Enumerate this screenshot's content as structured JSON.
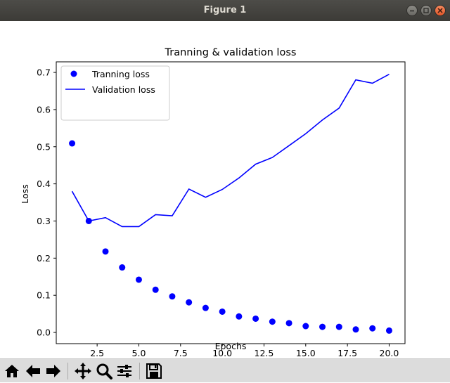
{
  "window": {
    "title": "Figure 1"
  },
  "toolbar": {
    "buttons": [
      "home-icon",
      "back-arrow-icon",
      "forward-arrow-icon",
      "pan-icon",
      "zoom-icon",
      "subplots-icon",
      "save-icon"
    ]
  },
  "colors": {
    "series": "#0000ff",
    "titlebar": "#3c3b37",
    "toolbar": "#dcdcdc"
  },
  "chart_data": {
    "type": "line",
    "title": "Tranning & validation loss",
    "xlabel": "Epochs",
    "ylabel": "Loss",
    "xlim": [
      0.05,
      20.95
    ],
    "ylim": [
      -0.0302,
      0.7285
    ],
    "xticks": [
      2.5,
      5.0,
      7.5,
      10.0,
      12.5,
      15.0,
      17.5,
      20.0
    ],
    "xtick_labels": [
      "2.5",
      "5.0",
      "7.5",
      "10.0",
      "12.5",
      "15.0",
      "17.5",
      "20.0"
    ],
    "yticks": [
      0.0,
      0.1,
      0.2,
      0.3,
      0.4,
      0.5,
      0.6,
      0.7
    ],
    "ytick_labels": [
      "0.0",
      "0.1",
      "0.2",
      "0.3",
      "0.4",
      "0.5",
      "0.6",
      "0.7"
    ],
    "legend_position": "top-left",
    "grid": false,
    "series": [
      {
        "name": "Tranning loss",
        "style": "markers",
        "color": "#0000ff",
        "x": [
          1,
          2,
          3,
          4,
          5,
          6,
          7,
          8,
          9,
          10,
          11,
          12,
          13,
          14,
          15,
          16,
          17,
          18,
          19,
          20
        ],
        "y": [
          0.509,
          0.3,
          0.218,
          0.175,
          0.142,
          0.115,
          0.097,
          0.081,
          0.066,
          0.056,
          0.043,
          0.037,
          0.029,
          0.025,
          0.017,
          0.015,
          0.015,
          0.008,
          0.011,
          0.005
        ]
      },
      {
        "name": "Validation loss",
        "style": "line",
        "color": "#0000ff",
        "x": [
          1,
          2,
          3,
          4,
          5,
          6,
          7,
          8,
          9,
          10,
          11,
          12,
          13,
          14,
          15,
          16,
          17,
          18,
          19,
          20
        ],
        "y": [
          0.38,
          0.3,
          0.309,
          0.285,
          0.285,
          0.317,
          0.314,
          0.386,
          0.364,
          0.385,
          0.416,
          0.453,
          0.471,
          0.503,
          0.535,
          0.572,
          0.604,
          0.68,
          0.671,
          0.695
        ]
      }
    ]
  }
}
